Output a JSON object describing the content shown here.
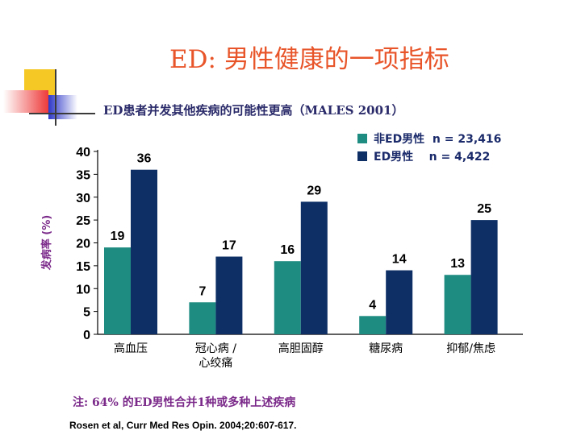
{
  "title": "ED: 男性健康的一项指标",
  "subtitle": "ED患者并发其他疾病的可能性更高（MALES 2001）",
  "footnote": "注: 64% 的ED男性合并1种或多种上述疾病",
  "citation": "Rosen et al, Curr Med Res Opin. 2004;20:607-617.",
  "colors": {
    "series_non_ed": "#1f8c82",
    "series_ed": "#0d2f66",
    "title": "#e8552a",
    "ylabel": "#7b2a8a"
  },
  "chart_data": {
    "type": "bar",
    "categories": [
      "高血压",
      "冠心病 /\n心绞痛",
      "高胆固醇",
      "糖尿病",
      "抑郁/焦虑"
    ],
    "series": [
      {
        "name": "非ED男性  n = 23,416",
        "values": [
          19,
          7,
          16,
          4,
          13
        ]
      },
      {
        "name": "ED男性    n = 4,422",
        "values": [
          36,
          17,
          29,
          14,
          25
        ]
      }
    ],
    "ylabel": "发病率 (%)",
    "ylim": [
      0,
      40
    ],
    "yticks": [
      0,
      5,
      10,
      15,
      20,
      25,
      30,
      35,
      40
    ],
    "legend": "top-right",
    "grid": false
  }
}
